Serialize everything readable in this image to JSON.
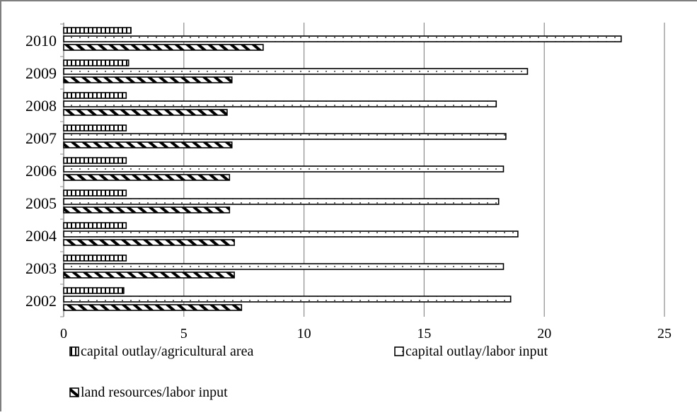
{
  "chart_data": {
    "type": "bar",
    "orientation": "horizontal",
    "title": "",
    "xlabel": "",
    "ylabel": "",
    "categories": [
      "2002",
      "2003",
      "2004",
      "2005",
      "2006",
      "2007",
      "2008",
      "2009",
      "2010"
    ],
    "series": [
      {
        "name": "capital outlay/agricultural area",
        "pattern": "vertical-hatch",
        "values": [
          2.5,
          2.6,
          2.6,
          2.6,
          2.6,
          2.6,
          2.6,
          2.7,
          2.8
        ]
      },
      {
        "name": "capital outlay/labor input",
        "pattern": "dots",
        "values": [
          18.6,
          18.3,
          18.9,
          18.1,
          18.3,
          18.4,
          18.0,
          19.3,
          23.2
        ]
      },
      {
        "name": "land resources/labor input",
        "pattern": "diagonal-hatch",
        "values": [
          7.4,
          7.1,
          7.1,
          6.9,
          6.9,
          7.0,
          6.8,
          7.0,
          8.3
        ]
      }
    ],
    "xlim": [
      0,
      25
    ],
    "xticks": [
      "0",
      "5",
      "10",
      "15",
      "20",
      "25"
    ],
    "grid": true,
    "legend_position": "bottom"
  }
}
